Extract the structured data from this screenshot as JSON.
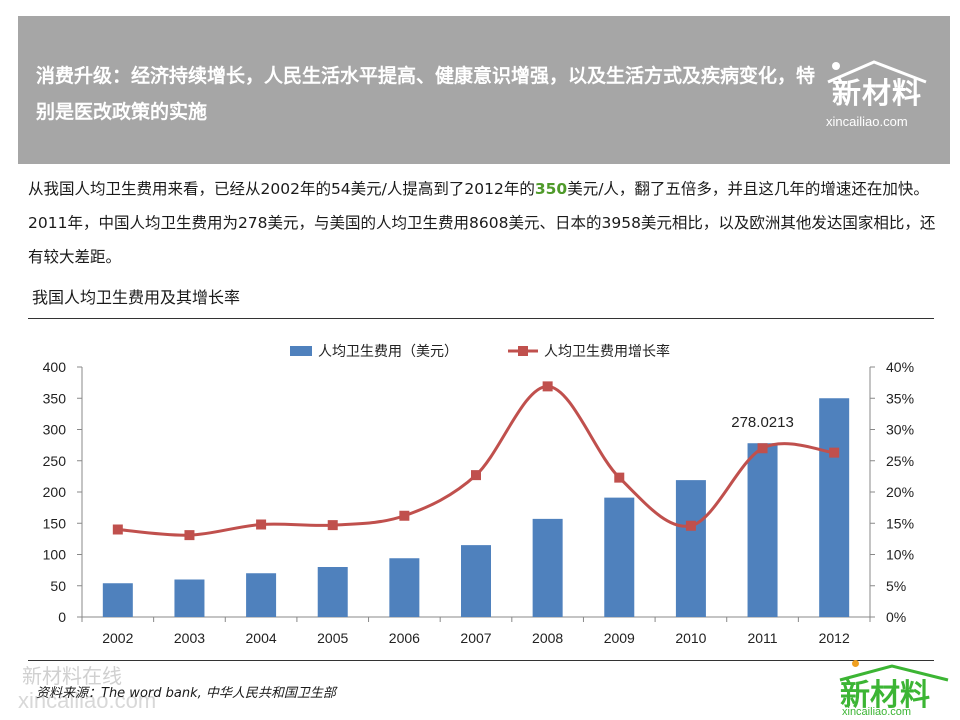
{
  "header": {
    "text": "消费升级：经济持续增长，人民生活水平提高、健康意识增强，以及生活方式及疾病变化，特别是医改政策的实施",
    "logo_cn": "新材料",
    "logo_en": "xincailiao.com"
  },
  "intro": {
    "part1": "从我国人均卫生费用来看，已经从2002年的54美元/人提高到了2012年的",
    "highlight": "350",
    "part2": "美元/人，翻了五倍多，并且这几年的增速还在加快。2011年，中国人均卫生费用为278美元，与美国的人均卫生费用8608美元、日本的3958美元相比，以及欧洲其他发达国家相比，还有较大差距。"
  },
  "chart_title": "我国人均卫生费用及其增长率",
  "source": "资料来源：The word bank, 中华人民共和国卫生部",
  "watermark": {
    "cn": "新材料在线",
    "en": "xincailiao.com"
  },
  "footer_logo": {
    "cn": "新材料",
    "en": "xincailiao.com"
  },
  "colors": {
    "bar": "#4f81bd",
    "line": "#c0504d",
    "header_bg": "#a6a6a6",
    "highlight": "#4f9a2a",
    "logo_green": "#3cb534"
  },
  "chart_data": {
    "type": "bar",
    "categories": [
      "2002",
      "2003",
      "2004",
      "2005",
      "2006",
      "2007",
      "2008",
      "2009",
      "2010",
      "2011",
      "2012"
    ],
    "series": [
      {
        "name": "人均卫生费用（美元）",
        "type": "bar",
        "axis": "left",
        "values": [
          54,
          60,
          70,
          80,
          94,
          115,
          157,
          191,
          219,
          278.0213,
          350
        ]
      },
      {
        "name": "人均卫生费用增长率",
        "type": "line",
        "axis": "right",
        "smooth": true,
        "values": [
          14.0,
          13.1,
          14.8,
          14.7,
          16.2,
          22.7,
          36.9,
          22.3,
          14.6,
          27.0,
          26.3
        ]
      }
    ],
    "y_left": {
      "min": 0,
      "max": 400,
      "ticks": [
        "0",
        "50",
        "100",
        "150",
        "200",
        "250",
        "300",
        "350",
        "400"
      ]
    },
    "y_right": {
      "min": 0,
      "max": 40,
      "ticks": [
        "0%",
        "5%",
        "10%",
        "15%",
        "20%",
        "25%",
        "30%",
        "35%",
        "40%"
      ]
    },
    "annotations": [
      {
        "category": "2011",
        "series": 0,
        "text": "278.0213"
      }
    ],
    "legend": "top-center",
    "grid": false
  }
}
